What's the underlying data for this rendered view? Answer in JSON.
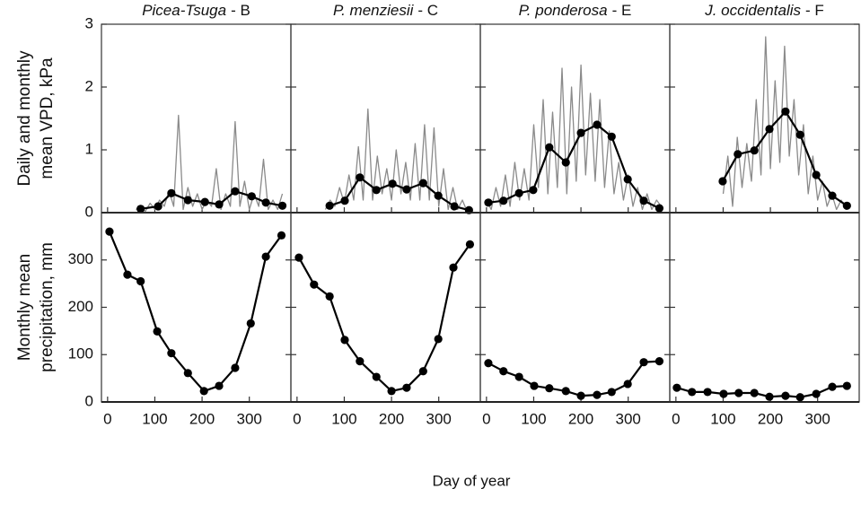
{
  "xlabel": "Day of year",
  "chart_data": [
    {
      "type": "line",
      "title": [
        "Picea-Tsuga",
        "- B"
      ],
      "ylabel": [
        "Daily and monthly",
        "mean VPD, kPa"
      ],
      "xlim": [
        -13,
        388
      ],
      "ylim": [
        0,
        3
      ],
      "xticks": [
        0,
        100,
        200,
        300
      ],
      "yticks": [
        0,
        1,
        2,
        3
      ],
      "show_xtick_labels": false,
      "show_ytick_labels": true,
      "daily": {
        "color": "#8a8a8a",
        "x": [
          60,
          70,
          80,
          90,
          100,
          110,
          120,
          130,
          140,
          150,
          160,
          170,
          180,
          190,
          200,
          210,
          220,
          230,
          240,
          250,
          260,
          270,
          280,
          290,
          300,
          310,
          320,
          330,
          340,
          350,
          360,
          370
        ],
        "values": [
          0.05,
          0.1,
          0.02,
          0.15,
          0.05,
          0.2,
          0.1,
          0.35,
          0.1,
          1.55,
          0.05,
          0.4,
          0.1,
          0.3,
          0.05,
          0.2,
          0.1,
          0.7,
          0.05,
          0.3,
          0.1,
          1.45,
          0.1,
          0.5,
          0.05,
          0.3,
          0.1,
          0.85,
          0.05,
          0.2,
          0.05,
          0.3
        ]
      },
      "monthly": {
        "color": "#000000",
        "x": [
          70,
          107,
          135,
          170,
          206,
          236,
          270,
          305,
          335,
          370
        ],
        "values": [
          0.06,
          0.1,
          0.31,
          0.2,
          0.17,
          0.13,
          0.34,
          0.26,
          0.16,
          0.11
        ]
      }
    },
    {
      "type": "line",
      "title": [
        "P. menziesii",
        "- C"
      ],
      "xlim": [
        -13,
        388
      ],
      "ylim": [
        0,
        3
      ],
      "xticks": [
        0,
        100,
        200,
        300
      ],
      "yticks": [
        0,
        1,
        2,
        3
      ],
      "show_xtick_labels": false,
      "show_ytick_labels": false,
      "daily": {
        "color": "#8a8a8a",
        "x": [
          60,
          70,
          80,
          90,
          100,
          110,
          120,
          130,
          140,
          150,
          160,
          170,
          180,
          190,
          200,
          210,
          220,
          230,
          240,
          250,
          260,
          270,
          280,
          290,
          300,
          310,
          320,
          330,
          340,
          350,
          360,
          370
        ],
        "values": [
          0.05,
          0.2,
          0.1,
          0.4,
          0.15,
          0.6,
          0.2,
          1.05,
          0.2,
          1.65,
          0.2,
          0.9,
          0.3,
          0.7,
          0.2,
          1.0,
          0.3,
          0.8,
          0.2,
          1.1,
          0.2,
          1.4,
          0.2,
          1.35,
          0.1,
          0.7,
          0.05,
          0.4,
          0.05,
          0.2,
          0.02,
          0.05
        ]
      },
      "monthly": {
        "color": "#000000",
        "x": [
          69,
          101,
          133,
          168,
          202,
          232,
          267,
          299,
          333,
          364
        ],
        "values": [
          0.11,
          0.19,
          0.56,
          0.36,
          0.46,
          0.37,
          0.47,
          0.27,
          0.1,
          0.04
        ]
      }
    },
    {
      "type": "line",
      "title": [
        "P. ponderosa",
        "- E"
      ],
      "xlim": [
        -13,
        388
      ],
      "ylim": [
        0,
        3
      ],
      "xticks": [
        0,
        100,
        200,
        300
      ],
      "yticks": [
        0,
        1,
        2,
        3
      ],
      "show_xtick_labels": false,
      "show_ytick_labels": false,
      "daily": {
        "color": "#8a8a8a",
        "x": [
          0,
          10,
          20,
          30,
          40,
          50,
          60,
          70,
          80,
          90,
          100,
          110,
          120,
          130,
          140,
          150,
          160,
          170,
          180,
          190,
          200,
          210,
          220,
          230,
          240,
          250,
          260,
          270,
          280,
          290,
          300,
          310,
          320,
          330,
          340,
          350,
          360,
          370
        ],
        "values": [
          0.2,
          0.05,
          0.4,
          0.1,
          0.6,
          0.1,
          0.8,
          0.2,
          0.7,
          0.2,
          1.4,
          0.4,
          1.8,
          0.3,
          1.6,
          0.4,
          2.3,
          0.3,
          2.0,
          0.5,
          2.35,
          0.6,
          1.9,
          0.5,
          1.8,
          0.4,
          1.3,
          0.3,
          0.8,
          0.2,
          0.6,
          0.1,
          0.4,
          0.05,
          0.3,
          0.05,
          0.2,
          0.1
        ]
      },
      "monthly": {
        "color": "#000000",
        "x": [
          4,
          36,
          69,
          99,
          133,
          168,
          200,
          234,
          265,
          299,
          333,
          366
        ],
        "values": [
          0.16,
          0.19,
          0.31,
          0.36,
          1.04,
          0.8,
          1.27,
          1.4,
          1.21,
          0.53,
          0.19,
          0.07
        ]
      }
    },
    {
      "type": "line",
      "title": [
        "J. occidentalis",
        "- F"
      ],
      "xlim": [
        -13,
        388
      ],
      "ylim": [
        0,
        3
      ],
      "xticks": [
        0,
        100,
        200,
        300
      ],
      "yticks": [
        0,
        1,
        2,
        3
      ],
      "show_xtick_labels": false,
      "show_ytick_labels": false,
      "daily": {
        "color": "#8a8a8a",
        "x": [
          100,
          110,
          120,
          130,
          140,
          150,
          160,
          170,
          180,
          190,
          200,
          210,
          220,
          230,
          240,
          250,
          260,
          270,
          280,
          290,
          300,
          310,
          320,
          330,
          340,
          350,
          360,
          370
        ],
        "values": [
          0.3,
          0.9,
          0.1,
          1.2,
          0.4,
          1.1,
          0.5,
          1.8,
          0.6,
          2.8,
          0.7,
          2.1,
          0.8,
          2.65,
          0.9,
          1.8,
          0.6,
          1.4,
          0.3,
          0.9,
          0.2,
          0.5,
          0.1,
          0.3,
          0.05,
          0.2,
          0.05,
          0.1
        ]
      },
      "monthly": {
        "color": "#000000",
        "x": [
          99,
          131,
          166,
          198,
          232,
          263,
          297,
          331,
          362
        ],
        "values": [
          0.5,
          0.93,
          0.99,
          1.33,
          1.61,
          1.24,
          0.6,
          0.27,
          0.11
        ]
      }
    },
    {
      "type": "line",
      "ylabel": [
        "Monthly mean",
        "precipitation, mm"
      ],
      "xlim": [
        -13,
        388
      ],
      "ylim": [
        0,
        400
      ],
      "xticks": [
        0,
        100,
        200,
        300
      ],
      "yticks": [
        0,
        100,
        200,
        300
      ],
      "show_xtick_labels": true,
      "show_ytick_labels": true,
      "monthly": {
        "color": "#000000",
        "x": [
          4,
          42,
          70,
          105,
          135,
          170,
          204,
          236,
          270,
          303,
          335,
          368
        ],
        "values": [
          360,
          269,
          255,
          149,
          103,
          61,
          23,
          34,
          72,
          166,
          307,
          352
        ]
      }
    },
    {
      "type": "line",
      "xlim": [
        -13,
        388
      ],
      "ylim": [
        0,
        400
      ],
      "xticks": [
        0,
        100,
        200,
        300
      ],
      "yticks": [
        0,
        100,
        200,
        300
      ],
      "show_xtick_labels": true,
      "show_ytick_labels": false,
      "monthly": {
        "color": "#000000",
        "x": [
          4,
          36,
          69,
          101,
          133,
          168,
          200,
          232,
          267,
          299,
          331,
          366
        ],
        "values": [
          305,
          248,
          223,
          131,
          86,
          53,
          23,
          30,
          65,
          133,
          284,
          333
        ]
      }
    },
    {
      "type": "line",
      "xlim": [
        -13,
        388
      ],
      "ylim": [
        0,
        400
      ],
      "xticks": [
        0,
        100,
        200,
        300
      ],
      "yticks": [
        0,
        100,
        200,
        300
      ],
      "show_xtick_labels": true,
      "show_ytick_labels": false,
      "monthly": {
        "color": "#000000",
        "x": [
          4,
          36,
          69,
          101,
          133,
          168,
          200,
          234,
          265,
          299,
          333,
          366
        ],
        "values": [
          82,
          65,
          53,
          34,
          29,
          23,
          13,
          15,
          21,
          38,
          84,
          86
        ]
      }
    },
    {
      "type": "line",
      "xlim": [
        -13,
        388
      ],
      "ylim": [
        0,
        400
      ],
      "xticks": [
        0,
        100,
        200,
        300
      ],
      "yticks": [
        0,
        100,
        200,
        300
      ],
      "show_xtick_labels": true,
      "show_ytick_labels": false,
      "monthly": {
        "color": "#000000",
        "x": [
          2,
          34,
          67,
          101,
          133,
          166,
          198,
          232,
          263,
          297,
          331,
          362
        ],
        "values": [
          30,
          21,
          21,
          17,
          19,
          19,
          11,
          13,
          10,
          17,
          32,
          34
        ]
      }
    }
  ]
}
